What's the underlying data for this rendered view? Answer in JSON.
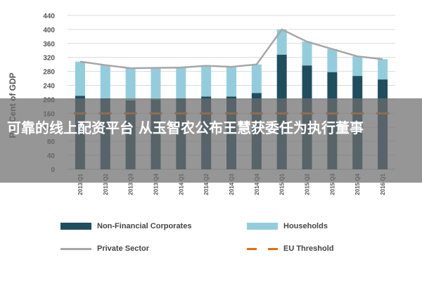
{
  "chart_data": {
    "type": "bar",
    "stacked": true,
    "categories": [
      "2013 Q1",
      "2013 Q2",
      "2013 Q3",
      "2013 Q4",
      "2014 Q1",
      "2014 Q2",
      "2014 Q3",
      "2014 Q4",
      "2015 Q1",
      "2015 Q2",
      "2015 Q3",
      "2015 Q4",
      "2016 Q1"
    ],
    "series": [
      {
        "name": "Non-Financial Corporates",
        "type": "bar",
        "color": "#1f4e5f",
        "values": [
          210,
          203,
          197,
          200,
          203,
          208,
          208,
          218,
          328,
          297,
          278,
          267,
          257
        ]
      },
      {
        "name": "Households",
        "type": "bar",
        "color": "#93cddd",
        "values": [
          98,
          95,
          92,
          90,
          88,
          88,
          85,
          82,
          72,
          68,
          66,
          56,
          58
        ]
      },
      {
        "name": "Private Sector",
        "type": "line",
        "color": "#a6a6a6",
        "values": [
          308,
          298,
          289,
          290,
          291,
          296,
          293,
          300,
          400,
          365,
          344,
          323,
          315
        ]
      },
      {
        "name": "EU Threshold",
        "type": "line",
        "dashed": true,
        "color": "#e46c0a",
        "values": [
          160,
          160,
          160,
          160,
          160,
          160,
          160,
          160,
          160,
          160,
          160,
          160,
          160
        ]
      }
    ],
    "ylabel": "Per Cent of GDP",
    "ylim": [
      0,
      440
    ],
    "yticks": [
      0,
      40,
      80,
      120,
      160,
      200,
      240,
      280,
      320,
      360,
      400,
      440
    ],
    "grid": true,
    "legend_position": "bottom"
  },
  "legend": {
    "corporates": "Non-Financial Corporates",
    "households": "Households",
    "private": "Private Sector",
    "threshold": "EU Threshold"
  },
  "overlay": {
    "headline": "可靠的线上配资平台 从玉智农公布王慧获委任为执行董事"
  },
  "colors": {
    "corporates": "#1f4e5f",
    "households": "#93cddd",
    "private": "#a6a6a6",
    "threshold": "#e46c0a"
  }
}
